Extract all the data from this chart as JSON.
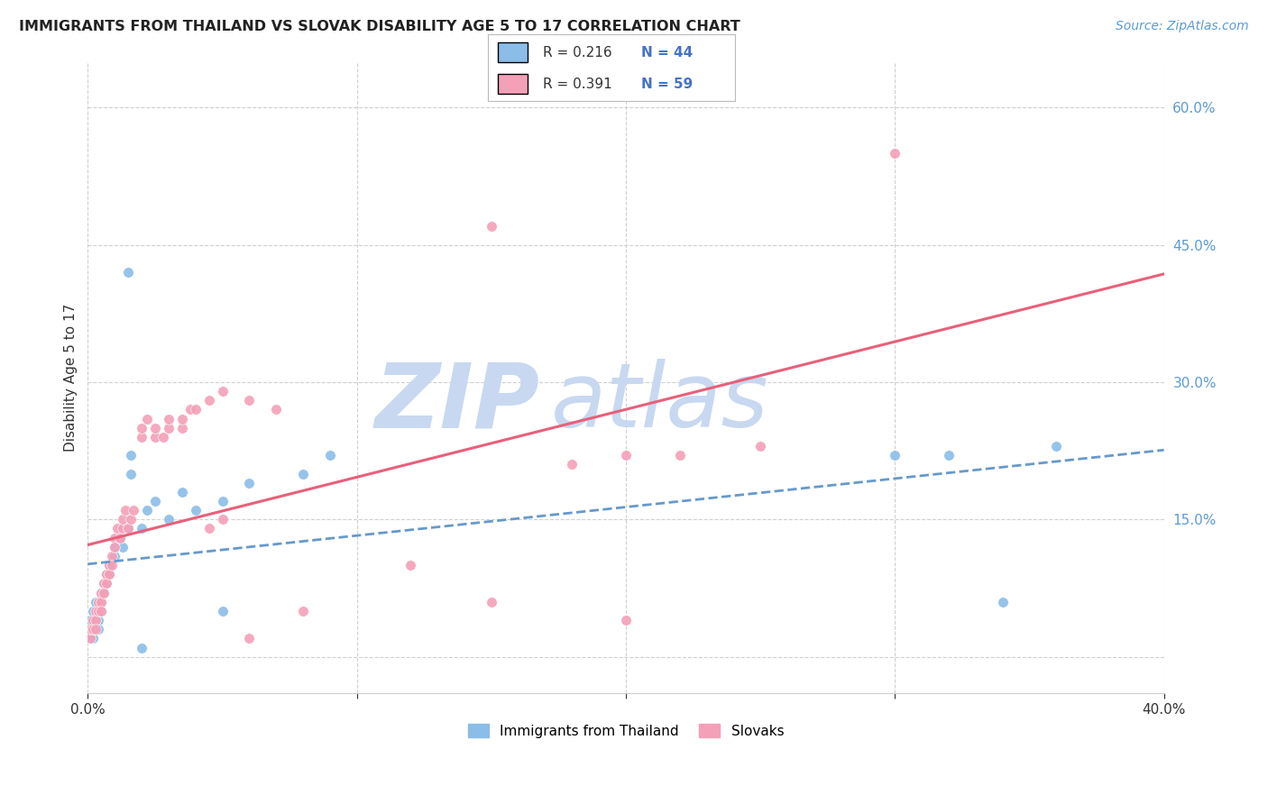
{
  "title": "IMMIGRANTS FROM THAILAND VS SLOVAK DISABILITY AGE 5 TO 17 CORRELATION CHART",
  "source": "Source: ZipAtlas.com",
  "ylabel": "Disability Age 5 to 17",
  "xlim": [
    0.0,
    0.4
  ],
  "ylim": [
    -0.04,
    0.65
  ],
  "y_ticks_right": [
    0.0,
    0.15,
    0.3,
    0.45,
    0.6
  ],
  "y_tick_labels_right": [
    "",
    "15.0%",
    "30.0%",
    "45.0%",
    "60.0%"
  ],
  "x_ticks": [
    0.0,
    0.1,
    0.2,
    0.3,
    0.4
  ],
  "x_tick_labels": [
    "0.0%",
    "",
    "",
    "",
    "40.0%"
  ],
  "grid_color": "#d0d0d0",
  "background_color": "#ffffff",
  "watermark_zip": "ZIP",
  "watermark_atlas": "atlas",
  "watermark_color": "#c8d8f0",
  "legend_r1": "R = 0.216",
  "legend_n1": "N = 44",
  "legend_r2": "R = 0.391",
  "legend_n2": "N = 59",
  "color_thailand": "#8bbde8",
  "color_slovak": "#f4a0b8",
  "line_color_thailand": "#6699cc",
  "line_color_slovak": "#e8607a",
  "legend_r_color": "#333333",
  "legend_n_color": "#4472c4",
  "title_color": "#222222",
  "source_color": "#5b9bd5",
  "ylabel_color": "#333333",
  "ytick_color": "#5b9bd5",
  "xtick_color": "#333333"
}
